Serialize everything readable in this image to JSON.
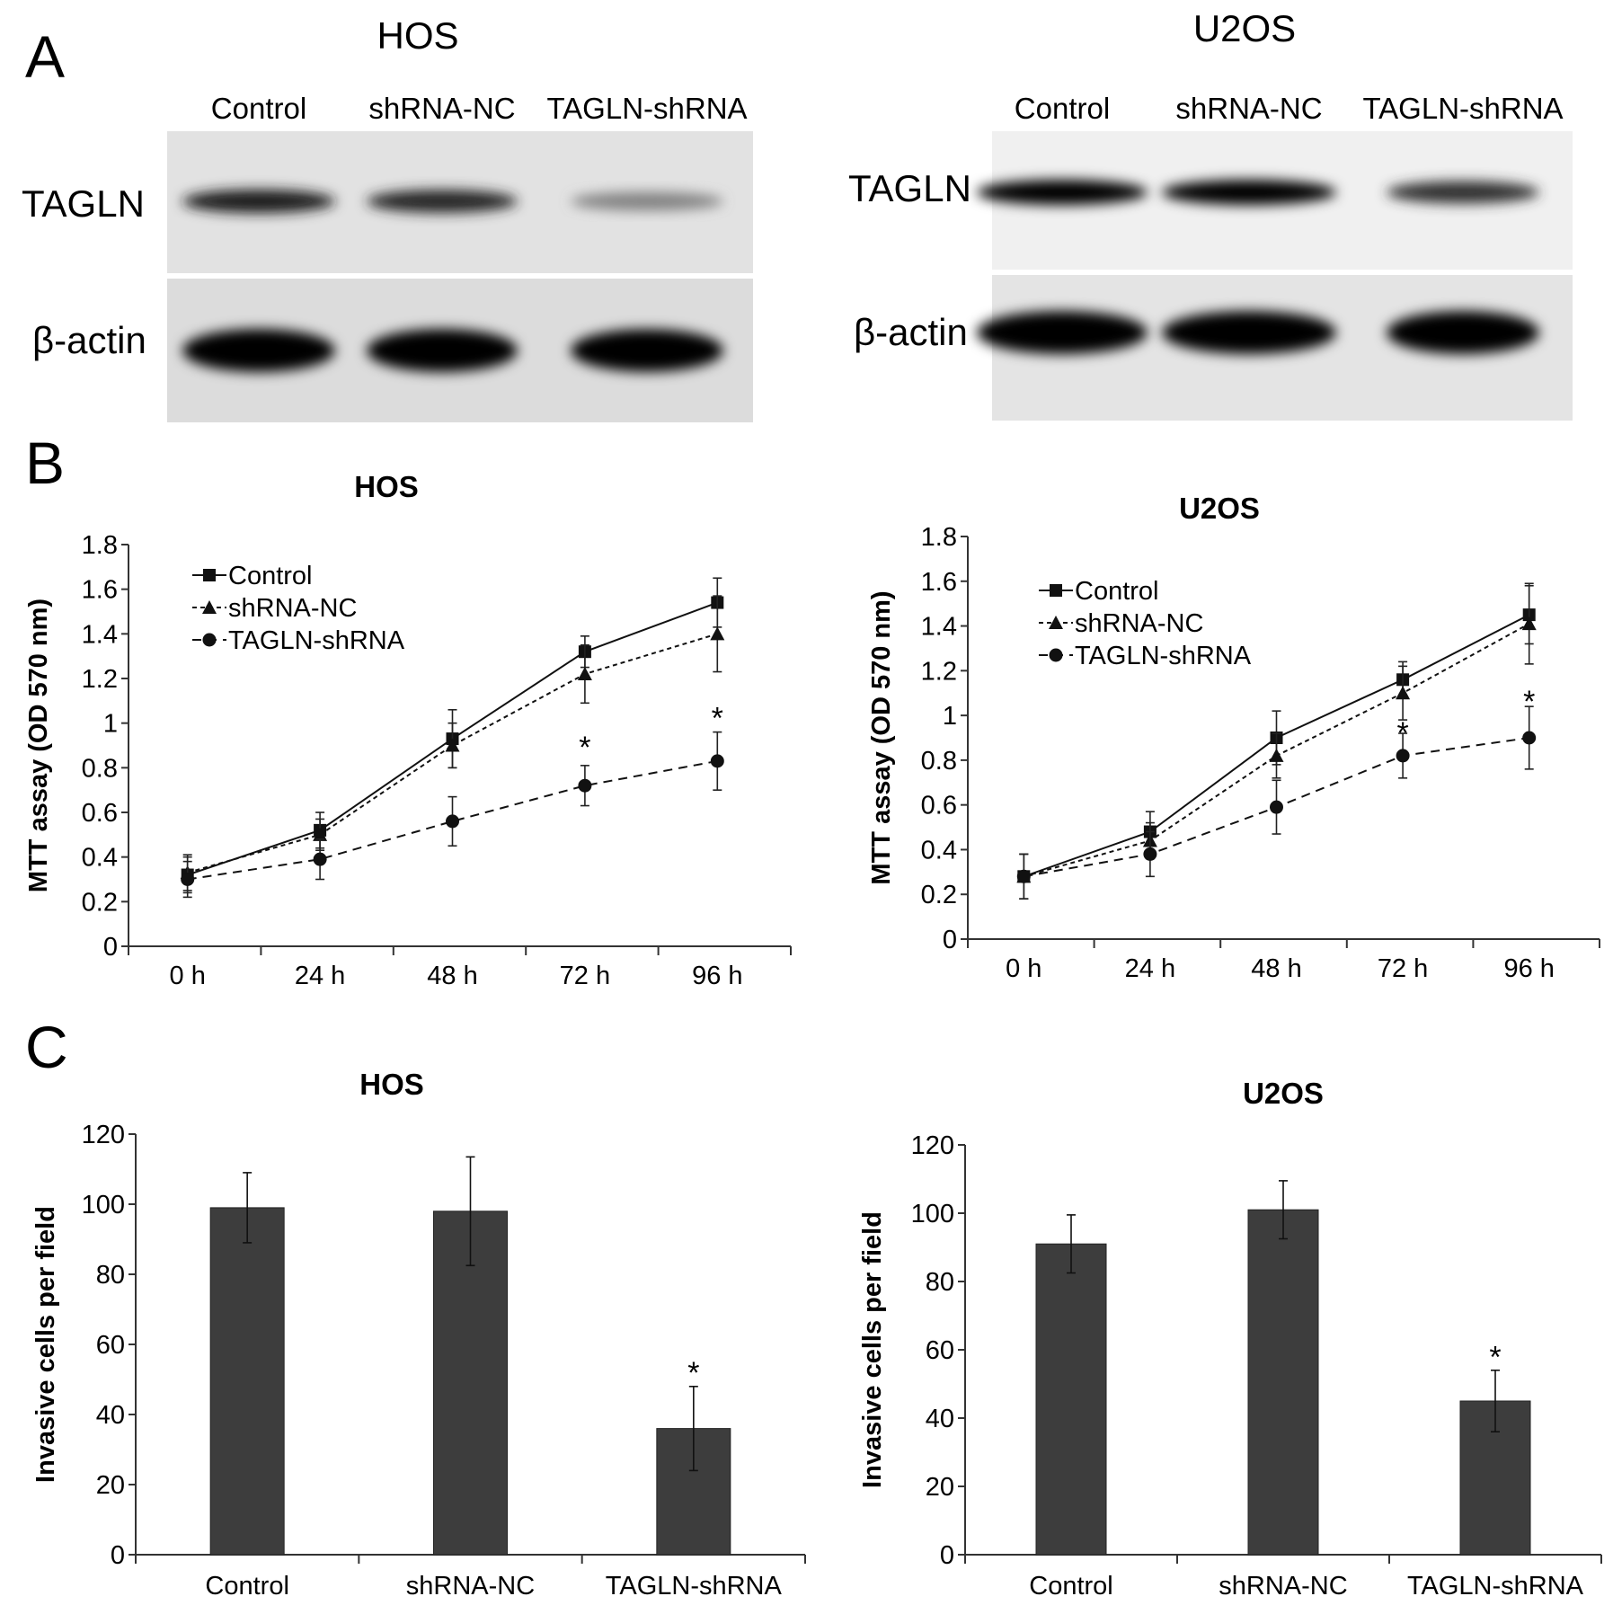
{
  "panel_letters": [
    "A",
    "B",
    "C"
  ],
  "blots": [
    {
      "title": "HOS",
      "lanes": [
        "Control",
        "shRNA-NC",
        "TAGLN-shRNA"
      ],
      "rows": [
        {
          "label": "TAGLN",
          "intensities": [
            0.85,
            0.8,
            0.35
          ]
        },
        {
          "label": "β-actin",
          "intensities": [
            1.0,
            1.0,
            0.98
          ]
        }
      ]
    },
    {
      "title": "U2OS",
      "lanes": [
        "Control",
        "shRNA-NC",
        "TAGLN-shRNA"
      ],
      "rows": [
        {
          "label": "TAGLN",
          "intensities": [
            1.0,
            1.0,
            0.75
          ]
        },
        {
          "label": "β-actin",
          "intensities": [
            1.0,
            1.0,
            1.0
          ]
        }
      ]
    }
  ],
  "chart_data": [
    {
      "type": "line",
      "title": "HOS",
      "ylabel": "MTT assay (OD 570 nm)",
      "categories": [
        "0 h",
        "24 h",
        "48 h",
        "72 h",
        "96 h"
      ],
      "ylim": [
        0,
        1.8
      ],
      "yticks": [
        "0",
        "0.2",
        "0.4",
        "0.6",
        "0.8",
        "1",
        "1.2",
        "1.4",
        "1.6",
        "1.8"
      ],
      "legend_position": "top-left",
      "series": [
        {
          "name": "Control",
          "marker": "square",
          "dash": "solid",
          "values": [
            0.32,
            0.52,
            0.93,
            1.32,
            1.54
          ],
          "errors": [
            0.08,
            0.08,
            0.13,
            0.07,
            0.11
          ]
        },
        {
          "name": "shRNA-NC",
          "marker": "triangle",
          "dash": "dotted",
          "values": [
            0.33,
            0.5,
            0.9,
            1.22,
            1.4
          ],
          "errors": [
            0.08,
            0.07,
            0.1,
            0.13,
            0.17
          ]
        },
        {
          "name": "TAGLN-shRNA",
          "marker": "circle",
          "dash": "dashed",
          "values": [
            0.3,
            0.39,
            0.56,
            0.72,
            0.83
          ],
          "errors": [
            0.08,
            0.09,
            0.11,
            0.09,
            0.13
          ]
        }
      ],
      "significance": [
        {
          "category": "72 h",
          "y": 0.91,
          "label": "*"
        },
        {
          "category": "96 h",
          "y": 1.04,
          "label": "*"
        }
      ]
    },
    {
      "type": "line",
      "title": "U2OS",
      "ylabel": "MTT assay (OD 570 nm)",
      "categories": [
        "0 h",
        "24 h",
        "48 h",
        "72 h",
        "96 h"
      ],
      "ylim": [
        0,
        1.8
      ],
      "yticks": [
        "0",
        "0.2",
        "0.4",
        "0.6",
        "0.8",
        "1",
        "1.2",
        "1.4",
        "1.6",
        "1.8"
      ],
      "legend_position": "top-left",
      "series": [
        {
          "name": "Control",
          "marker": "square",
          "dash": "solid",
          "values": [
            0.28,
            0.48,
            0.9,
            1.16,
            1.45
          ],
          "errors": [
            0.1,
            0.09,
            0.12,
            0.08,
            0.13
          ]
        },
        {
          "name": "shRNA-NC",
          "marker": "triangle",
          "dash": "dotted",
          "values": [
            0.28,
            0.44,
            0.82,
            1.1,
            1.41
          ],
          "errors": [
            0.1,
            0.08,
            0.1,
            0.12,
            0.18
          ]
        },
        {
          "name": "TAGLN-shRNA",
          "marker": "circle",
          "dash": "dashed",
          "values": [
            0.28,
            0.38,
            0.59,
            0.82,
            0.9
          ],
          "errors": [
            0.1,
            0.1,
            0.12,
            0.1,
            0.14
          ]
        }
      ],
      "significance": [
        {
          "category": "72 h",
          "y": 0.94,
          "label": "*"
        },
        {
          "category": "96 h",
          "y": 1.08,
          "label": "*"
        }
      ]
    },
    {
      "type": "bar",
      "title": "HOS",
      "ylabel": "Invasive cells per field",
      "categories": [
        "Control",
        "shRNA-NC",
        "TAGLN-shRNA"
      ],
      "values": [
        99,
        98,
        36
      ],
      "errors": [
        10,
        15.5,
        12
      ],
      "ylim": [
        0,
        120
      ],
      "yticks": [
        "0",
        "20",
        "40",
        "60",
        "80",
        "100",
        "120"
      ],
      "significance": [
        {
          "category": "TAGLN-shRNA",
          "y": 52,
          "label": "*"
        }
      ]
    },
    {
      "type": "bar",
      "title": "U2OS",
      "ylabel": "Invasive cells per field",
      "categories": [
        "Control",
        "shRNA-NC",
        "TAGLN-shRNA"
      ],
      "values": [
        91,
        101,
        45
      ],
      "errors": [
        8.5,
        8.5,
        9
      ],
      "ylim": [
        0,
        120
      ],
      "yticks": [
        "0",
        "20",
        "40",
        "60",
        "80",
        "100",
        "120"
      ],
      "significance": [
        {
          "category": "TAGLN-shRNA",
          "y": 58,
          "label": "*"
        }
      ]
    }
  ]
}
